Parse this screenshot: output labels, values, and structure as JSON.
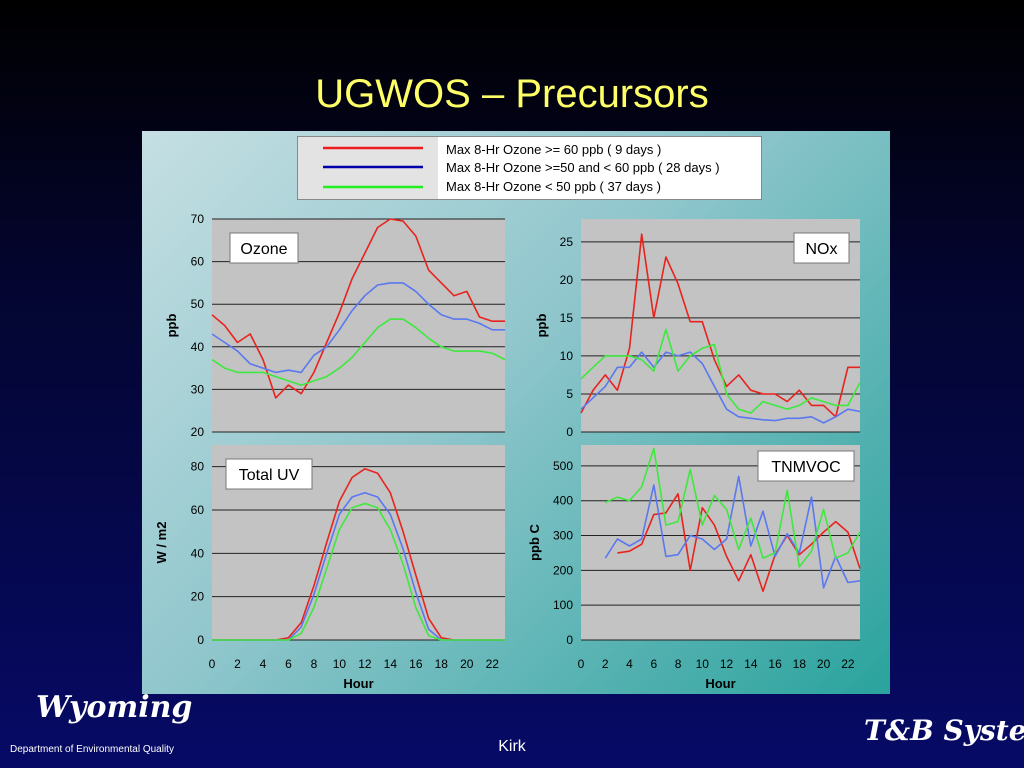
{
  "slide": {
    "title": "UGWOS – Precursors",
    "footer_author": "Kirk",
    "logo_left": {
      "script": "Wyoming",
      "subtitle": "Department of Environmental Quality"
    },
    "logo_right": {
      "script": "T&B Systems"
    }
  },
  "legend": {
    "entries": [
      {
        "label": "Max 8-Hr Ozone >= 60 ppb ( 9 days )",
        "color": "#ee1c1c"
      },
      {
        "label": "Max 8-Hr Ozone >=50 and < 60 ppb ( 28 days )",
        "color": "#0000aa"
      },
      {
        "label": "Max 8-Hr Ozone < 50 ppb ( 37 days )",
        "color": "#22ee22"
      }
    ]
  },
  "colors": {
    "plot_background": "#c3c3c3",
    "gridline": "#222222",
    "title_accent": "#ffff66",
    "series_high": "#e8231e",
    "series_mid": "#5a78f0",
    "series_low": "#3ee83e"
  },
  "chart_data": [
    {
      "type": "line",
      "title": "Ozone",
      "ylabel": "ppb",
      "xlabel": "",
      "ylim": [
        20,
        70
      ],
      "xlim": [
        0,
        23
      ],
      "yticks": [
        20,
        30,
        40,
        50,
        60,
        70
      ],
      "xticks": [],
      "grid": true,
      "series": [
        {
          "color": "#e8231e",
          "x": [
            0,
            1,
            2,
            3,
            4,
            5,
            6,
            7,
            8,
            9,
            10,
            11,
            12,
            13,
            14,
            15,
            16,
            17,
            18,
            19,
            20,
            21,
            22,
            23
          ],
          "values": [
            47.5,
            45,
            41,
            43,
            37,
            28,
            31,
            29,
            34,
            41,
            48,
            56,
            62,
            68,
            70,
            69.5,
            66,
            58,
            55,
            52,
            53,
            47,
            46,
            46
          ]
        },
        {
          "color": "#5a78f0",
          "x": [
            0,
            1,
            2,
            3,
            4,
            5,
            6,
            7,
            8,
            9,
            10,
            11,
            12,
            13,
            14,
            15,
            16,
            17,
            18,
            19,
            20,
            21,
            22,
            23
          ],
          "values": [
            43,
            41,
            39,
            36,
            35,
            34,
            34.5,
            34,
            38,
            40,
            44,
            48.5,
            52,
            54.5,
            55,
            55,
            53,
            50,
            47.5,
            46.5,
            46.5,
            45.5,
            44,
            44
          ]
        },
        {
          "color": "#3ee83e",
          "x": [
            0,
            1,
            2,
            3,
            4,
            5,
            6,
            7,
            8,
            9,
            10,
            11,
            12,
            13,
            14,
            15,
            16,
            17,
            18,
            19,
            20,
            21,
            22,
            23
          ],
          "values": [
            37,
            35,
            34,
            34,
            34,
            33,
            32,
            31,
            32,
            33,
            35,
            37.5,
            41,
            44.5,
            46.5,
            46.5,
            44.5,
            42,
            40,
            39,
            39,
            39,
            38.5,
            37
          ]
        }
      ]
    },
    {
      "type": "line",
      "title": "NOx",
      "ylabel": "ppb",
      "xlabel": "",
      "ylim": [
        0,
        28
      ],
      "xlim": [
        0,
        23
      ],
      "yticks": [
        0,
        5,
        10,
        15,
        20,
        25
      ],
      "xticks": [],
      "grid": true,
      "series": [
        {
          "color": "#e8231e",
          "x": [
            0,
            1,
            2,
            3,
            4,
            5,
            6,
            7,
            8,
            9,
            10,
            11,
            12,
            13,
            14,
            15,
            16,
            17,
            18,
            19,
            20,
            21,
            22,
            23
          ],
          "values": [
            2.5,
            5.5,
            7.5,
            5.5,
            11,
            26,
            15,
            23,
            19.5,
            14.5,
            14.5,
            9.5,
            6,
            7.5,
            5.5,
            5,
            5,
            4,
            5.5,
            3.5,
            3.5,
            2,
            8.5,
            8.5
          ]
        },
        {
          "color": "#5a78f0",
          "x": [
            0,
            1,
            2,
            3,
            4,
            5,
            6,
            7,
            8,
            9,
            10,
            11,
            12,
            13,
            14,
            15,
            16,
            17,
            18,
            19,
            20,
            21,
            22,
            23
          ],
          "values": [
            3,
            4.5,
            6,
            8.5,
            8.5,
            10.5,
            8.5,
            10.5,
            10,
            10.5,
            9,
            6,
            3,
            2,
            1.8,
            1.6,
            1.5,
            1.8,
            1.8,
            2,
            1.2,
            2,
            3,
            2.7
          ]
        },
        {
          "color": "#3ee83e",
          "x": [
            0,
            1,
            2,
            3,
            4,
            5,
            6,
            7,
            8,
            9,
            10,
            11,
            12,
            13,
            14,
            15,
            16,
            17,
            18,
            19,
            20,
            21,
            22,
            23
          ],
          "values": [
            7,
            8.5,
            10,
            10,
            10,
            9.5,
            8,
            13.5,
            8,
            10,
            11,
            11.5,
            5,
            3,
            2.5,
            4,
            3.5,
            3,
            3.5,
            4.5,
            4,
            3.5,
            3.5,
            6.5
          ]
        }
      ]
    },
    {
      "type": "line",
      "title": "Total UV",
      "ylabel": "W / m2",
      "xlabel": "Hour",
      "ylim": [
        0,
        90
      ],
      "xlim": [
        0,
        23
      ],
      "yticks": [
        0,
        20,
        40,
        60,
        80
      ],
      "xticks": [
        0,
        2,
        4,
        6,
        8,
        10,
        12,
        14,
        16,
        18,
        20,
        22
      ],
      "grid": true,
      "series": [
        {
          "color": "#e8231e",
          "x": [
            0,
            1,
            2,
            3,
            4,
            5,
            6,
            7,
            8,
            9,
            10,
            11,
            12,
            13,
            14,
            15,
            16,
            17,
            18,
            19,
            20,
            21,
            22,
            23
          ],
          "values": [
            0,
            0,
            0,
            0,
            0,
            0,
            1,
            8,
            25,
            45,
            64,
            75,
            79,
            77,
            68,
            50,
            30,
            10,
            1,
            0,
            0,
            0,
            0,
            0
          ]
        },
        {
          "color": "#5a78f0",
          "x": [
            0,
            1,
            2,
            3,
            4,
            5,
            6,
            7,
            8,
            9,
            10,
            11,
            12,
            13,
            14,
            15,
            16,
            17,
            18,
            19,
            20,
            21,
            22,
            23
          ],
          "values": [
            0,
            0,
            0,
            0,
            0,
            0,
            0,
            6,
            21,
            40,
            58,
            66,
            68,
            66,
            58,
            42,
            22,
            5,
            0,
            0,
            0,
            0,
            0,
            0
          ]
        },
        {
          "color": "#3ee83e",
          "x": [
            0,
            1,
            2,
            3,
            4,
            5,
            6,
            7,
            8,
            9,
            10,
            11,
            12,
            13,
            14,
            15,
            16,
            17,
            18,
            19,
            20,
            21,
            22,
            23
          ],
          "values": [
            0,
            0,
            0,
            0,
            0,
            0,
            0,
            3,
            15,
            33,
            51,
            61,
            63,
            61,
            51,
            35,
            15,
            2,
            0,
            0,
            0,
            0,
            0,
            0
          ]
        }
      ]
    },
    {
      "type": "line",
      "title": "TNMVOC",
      "ylabel": "ppb C",
      "xlabel": "Hour",
      "ylim": [
        0,
        560
      ],
      "xlim": [
        0,
        23
      ],
      "yticks": [
        0,
        100,
        200,
        300,
        400,
        500
      ],
      "xticks": [
        0,
        2,
        4,
        6,
        8,
        10,
        12,
        14,
        16,
        18,
        20,
        22
      ],
      "grid": true,
      "series": [
        {
          "color": "#e8231e",
          "x": [
            3,
            4,
            5,
            6,
            7,
            8,
            9,
            10,
            11,
            12,
            13,
            14,
            15,
            16,
            17,
            18,
            19,
            20,
            21,
            22,
            23
          ],
          "values": [
            250,
            255,
            275,
            360,
            365,
            420,
            200,
            380,
            330,
            240,
            170,
            245,
            140,
            245,
            300,
            245,
            275,
            310,
            340,
            310,
            205
          ]
        },
        {
          "color": "#5a78f0",
          "x": [
            2,
            3,
            4,
            5,
            6,
            7,
            8,
            9,
            10,
            11,
            12,
            13,
            14,
            15,
            16,
            17,
            18,
            19,
            20,
            21,
            22,
            23
          ],
          "values": [
            235,
            290,
            270,
            290,
            445,
            240,
            245,
            300,
            290,
            260,
            290,
            470,
            270,
            370,
            240,
            305,
            250,
            410,
            150,
            240,
            165,
            170
          ]
        },
        {
          "color": "#3ee83e",
          "x": [
            2,
            3,
            4,
            5,
            6,
            7,
            8,
            9,
            10,
            11,
            12,
            13,
            14,
            15,
            16,
            17,
            18,
            19,
            20,
            21,
            22,
            23
          ],
          "values": [
            395,
            410,
            400,
            440,
            550,
            330,
            340,
            490,
            330,
            415,
            375,
            260,
            350,
            235,
            250,
            430,
            210,
            255,
            375,
            235,
            250,
            310
          ]
        }
      ]
    }
  ]
}
